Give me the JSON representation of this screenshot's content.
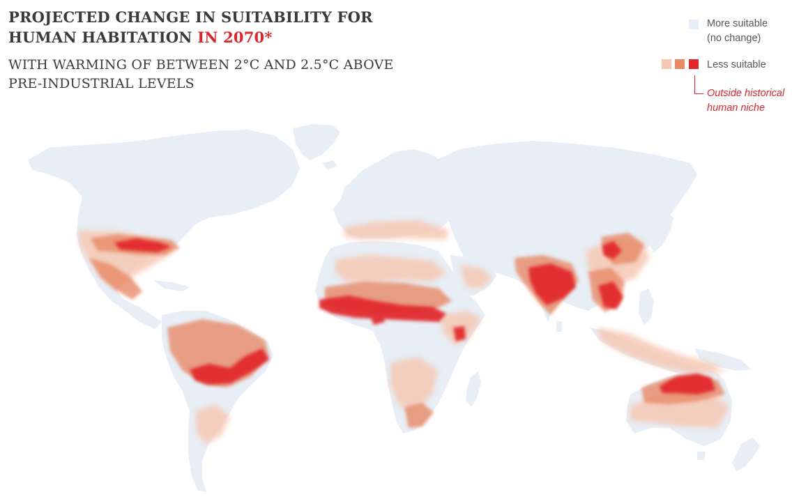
{
  "header": {
    "title_part1": "PROJECTED CHANGE IN SUITABILITY FOR",
    "title_part2": "HUMAN HABITATION ",
    "title_highlight": "IN 2070*",
    "subtitle_line1": "WITH WARMING OF BETWEEN 2°C AND 2.5°C ABOVE",
    "subtitle_line2": "PRE-INDUSTRIAL LEVELS"
  },
  "legend": {
    "more_suitable_line1": "More suitable",
    "more_suitable_line2": "(no change)",
    "less_suitable": "Less suitable",
    "outside_line1": "Outside historical",
    "outside_line2": "human niche"
  },
  "colors": {
    "land": "#e7eef5",
    "less_light": "#f6c8b4",
    "less_mid": "#e88a67",
    "outside_niche": "#e2252b",
    "title_accent": "#d7262c",
    "text": "#3a3a3a"
  }
}
